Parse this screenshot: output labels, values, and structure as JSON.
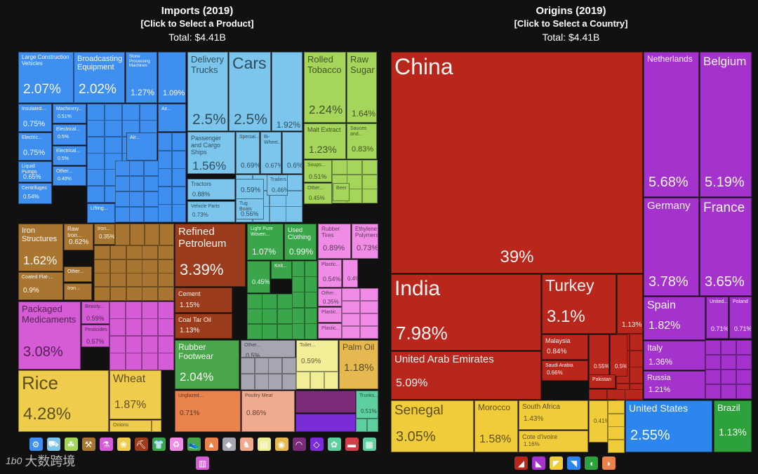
{
  "left_header": {
    "title": "Imports (2019)",
    "subtitle": "[Click to Select a Product]",
    "total": "Total: $4.41B"
  },
  "right_header": {
    "title": "Origins (2019)",
    "subtitle": "[Click to Select a Country]",
    "total": "Total: $4.41B"
  },
  "watermark": {
    "text": "大数跨境",
    "mark": "1b0"
  },
  "chart_data": [
    {
      "type": "treemap",
      "title": "Imports (2019)",
      "total": "$4.41B",
      "categories": [
        {
          "name": "Machinery",
          "color": "#3f8ff0",
          "items": [
            {
              "label": "Large Construction Vehicles",
              "value": "2.07%"
            },
            {
              "label": "Broadcasting Equipment",
              "value": "2.02%"
            },
            {
              "label": "Stone Processing Machines",
              "value": "1.27%"
            },
            {
              "label": "",
              "value": "1.09%"
            },
            {
              "label": "Insulated...",
              "value": "0.75%"
            },
            {
              "label": "Machinery...",
              "value": "0.51%"
            },
            {
              "label": "Electric...",
              "value": "0.75%"
            },
            {
              "label": "Electrical...",
              "value": "0.5%"
            },
            {
              "label": "Electrical...",
              "value": "0.5%"
            },
            {
              "label": "Liquid Pumps",
              "value": "0.65%"
            },
            {
              "label": "Other...",
              "value": "0.49%"
            },
            {
              "label": "Centrifuges",
              "value": "0.54%"
            },
            {
              "label": "Air...",
              "value": ""
            },
            {
              "label": "Air...",
              "value": ""
            },
            {
              "label": "Lifting...",
              "value": ""
            }
          ]
        },
        {
          "name": "Transportation",
          "color": "#7cc5ec",
          "items": [
            {
              "label": "Delivery Trucks",
              "value": "2.5%"
            },
            {
              "label": "Cars",
              "value": "2.5%"
            },
            {
              "label": "",
              "value": "1.92%"
            },
            {
              "label": "Passenger and Cargo Ships",
              "value": "1.56%"
            },
            {
              "label": "Special...",
              "value": "0.69%"
            },
            {
              "label": "Bi-Wheel...",
              "value": "0.67%"
            },
            {
              "label": "",
              "value": "0.6%"
            },
            {
              "label": "Tractors",
              "value": "0.88%"
            },
            {
              "label": "",
              "value": "0.59%"
            },
            {
              "label": "Trailers",
              "value": "0.46%"
            },
            {
              "label": "Vehicle Parts",
              "value": "0.73%"
            },
            {
              "label": "Tug Boats",
              "value": "0.56%"
            }
          ]
        },
        {
          "name": "Foodstuffs",
          "color": "#a6d55c",
          "items": [
            {
              "label": "Rolled Tobacco",
              "value": "2.24%"
            },
            {
              "label": "Raw Sugar",
              "value": "1.64%"
            },
            {
              "label": "Malt Extract",
              "value": "1.23%"
            },
            {
              "label": "Sauces and...",
              "value": "0.83%"
            },
            {
              "label": "Soups...",
              "value": "0.51%"
            },
            {
              "label": "Other...",
              "value": "0.45%"
            },
            {
              "label": "Beer",
              "value": ""
            }
          ]
        },
        {
          "name": "Metals",
          "color": "#a87630",
          "items": [
            {
              "label": "Iron Structures",
              "value": "1.62%"
            },
            {
              "label": "Raw Iron...",
              "value": "0.62%"
            },
            {
              "label": "Iron...",
              "value": "0.35%"
            },
            {
              "label": "Other...",
              "value": ""
            },
            {
              "label": "Coated Flat-...",
              "value": "0.9%"
            },
            {
              "label": "Iron...",
              "value": ""
            }
          ]
        },
        {
          "name": "Mineral Products",
          "color": "#9b3d1d",
          "items": [
            {
              "label": "Refined Petroleum",
              "value": "3.39%"
            },
            {
              "label": "Cement",
              "value": "1.15%"
            },
            {
              "label": "Coal Tar Oil",
              "value": "1.13%"
            }
          ]
        },
        {
          "name": "Textiles",
          "color": "#3aa54a",
          "items": [
            {
              "label": "Light Pure Woven...",
              "value": "1.07%"
            },
            {
              "label": "Used Clothing",
              "value": "0.99%"
            },
            {
              "label": "Knit...",
              "value": ""
            },
            {
              "label": "",
              "value": "0.45%"
            }
          ]
        },
        {
          "name": "Plastics and Rubbers",
          "color": "#f08ce6",
          "items": [
            {
              "label": "Rubber Tires",
              "value": "0.89%"
            },
            {
              "label": "Ethylene Polymers",
              "value": "0.73%"
            },
            {
              "label": "Plastic...",
              "value": "0.54%"
            },
            {
              "label": "",
              "value": "0.4%"
            },
            {
              "label": "Other...",
              "value": "0.35%"
            },
            {
              "label": "Plastic...",
              "value": ""
            },
            {
              "label": "Plastic...",
              "value": ""
            }
          ]
        },
        {
          "name": "Chemical Products",
          "color": "#d65bd6",
          "items": [
            {
              "label": "Packaged Medicaments",
              "value": "3.08%"
            },
            {
              "label": "Beauty...",
              "value": "0.59%"
            },
            {
              "label": "Pesticides",
              "value": "0.57%"
            }
          ]
        },
        {
          "name": "Vegetable Products",
          "color": "#f0cc4c",
          "items": [
            {
              "label": "Rice",
              "value": "4.28%"
            },
            {
              "label": "Wheat",
              "value": "1.87%"
            },
            {
              "label": "Onions",
              "value": ""
            }
          ]
        },
        {
          "name": "Footwear and Headwear",
          "color": "#4aa64a",
          "items": [
            {
              "label": "Rubber Footwear",
              "value": "2.04%"
            }
          ]
        },
        {
          "name": "Stone And Glass",
          "color": "#a6a6b2",
          "items": [
            {
              "label": "Other...",
              "value": "0.5%"
            }
          ]
        },
        {
          "name": "Paper Goods",
          "color": "#f1ee98",
          "items": [
            {
              "label": "Toilet...",
              "value": "0.59%"
            }
          ]
        },
        {
          "name": "Animal and Vegetable Bi-Products",
          "color": "#e5b950",
          "items": [
            {
              "label": "Palm Oil",
              "value": "1.18%"
            }
          ]
        },
        {
          "name": "Wood Products",
          "color": "#e9834b",
          "items": [
            {
              "label": "Unglazed...",
              "value": "0.71%"
            }
          ]
        },
        {
          "name": "Animal Products",
          "color": "#f0aa8e",
          "items": [
            {
              "label": "Poultry Meat",
              "value": "0.86%"
            }
          ]
        },
        {
          "name": "Miscellaneous",
          "color": "#7b2b77",
          "items": [
            {
              "label": "",
              "value": ""
            }
          ]
        },
        {
          "name": "Instruments",
          "color": "#7a2cd8",
          "items": [
            {
              "label": "",
              "value": ""
            }
          ]
        },
        {
          "name": "Arts and Antiques",
          "color": "#5ecf9f",
          "items": [
            {
              "label": "Trunks...",
              "value": "0.51%"
            }
          ]
        }
      ]
    },
    {
      "type": "treemap",
      "title": "Origins (2019)",
      "total": "$4.41B",
      "categories": [
        {
          "name": "Asia",
          "color": "#b8261c",
          "items": [
            {
              "label": "China",
              "value": "39%"
            },
            {
              "label": "India",
              "value": "7.98%"
            },
            {
              "label": "Turkey",
              "value": "3.1%"
            },
            {
              "label": "",
              "value": "1.13%"
            },
            {
              "label": "United Arab Emirates",
              "value": "5.09%"
            },
            {
              "label": "Malaysia",
              "value": "0.84%"
            },
            {
              "label": "Saudi Arabia",
              "value": "0.66%"
            },
            {
              "label": "",
              "value": "0.55%"
            },
            {
              "label": "",
              "value": "0.5%"
            },
            {
              "label": "Pakistan",
              "value": ""
            }
          ]
        },
        {
          "name": "Europe",
          "color": "#a432cc",
          "items": [
            {
              "label": "Netherlands",
              "value": "5.68%"
            },
            {
              "label": "Belgium",
              "value": "5.19%"
            },
            {
              "label": "Germany",
              "value": "3.78%"
            },
            {
              "label": "France",
              "value": "3.65%"
            },
            {
              "label": "Spain",
              "value": "1.82%"
            },
            {
              "label": "United...",
              "value": "0.71%"
            },
            {
              "label": "Poland",
              "value": "0.71%"
            },
            {
              "label": "Italy",
              "value": "1.36%"
            },
            {
              "label": "Russia",
              "value": "1.21%"
            }
          ]
        },
        {
          "name": "Africa",
          "color": "#f0cc3a",
          "items": [
            {
              "label": "Senegal",
              "value": "3.05%"
            },
            {
              "label": "Morocco",
              "value": "1.58%"
            },
            {
              "label": "South Africa",
              "value": "1.43%"
            },
            {
              "label": "Cote d'Ivoire",
              "value": "1.16%"
            },
            {
              "label": "",
              "value": "0.41%"
            }
          ]
        },
        {
          "name": "North America",
          "color": "#2d86ee",
          "items": [
            {
              "label": "United States",
              "value": "2.55%"
            }
          ]
        },
        {
          "name": "South America",
          "color": "#2da13c",
          "items": [
            {
              "label": "Brazil",
              "value": "1.13%"
            }
          ]
        }
      ]
    }
  ],
  "product_icons": [
    {
      "name": "machinery-icon",
      "color": "#3f8ff0"
    },
    {
      "name": "transportation-icon",
      "color": "#7cc5ec"
    },
    {
      "name": "foodstuffs-icon",
      "color": "#a6d55c"
    },
    {
      "name": "metals-icon",
      "color": "#a87630"
    },
    {
      "name": "chemicals-icon",
      "color": "#d65bd6"
    },
    {
      "name": "vegetables-icon",
      "color": "#f0cc4c"
    },
    {
      "name": "mineral-icon",
      "color": "#9b3d1d"
    },
    {
      "name": "textiles-icon",
      "color": "#3aa54a"
    },
    {
      "name": "plastics-icon",
      "color": "#f08ce6"
    },
    {
      "name": "footwear-icon",
      "color": "#4aa64a"
    },
    {
      "name": "wood-icon",
      "color": "#e9834b"
    },
    {
      "name": "stone-icon",
      "color": "#a6a6b2"
    },
    {
      "name": "animal-icon",
      "color": "#f0aa8e"
    },
    {
      "name": "paper-icon",
      "color": "#f1ee98"
    },
    {
      "name": "oils-icon",
      "color": "#e5b950"
    },
    {
      "name": "instruments-icon",
      "color": "#7b2b77"
    },
    {
      "name": "precious-metals-icon",
      "color": "#7a2cd8"
    },
    {
      "name": "arts-icon",
      "color": "#5ecf9f"
    },
    {
      "name": "weapons-icon",
      "color": "#d0404a"
    },
    {
      "name": "miscellaneous-icon",
      "color": "#5ecf9f"
    },
    {
      "name": "furniture-icon",
      "color": "#d65bd6"
    }
  ],
  "region_icons": [
    {
      "name": "asia-icon",
      "color": "#b8261c"
    },
    {
      "name": "europe-icon",
      "color": "#a432cc"
    },
    {
      "name": "africa-icon",
      "color": "#f0cc3a"
    },
    {
      "name": "north-america-icon",
      "color": "#2d86ee"
    },
    {
      "name": "south-america-icon",
      "color": "#2da13c"
    },
    {
      "name": "oceania-icon",
      "color": "#e9834b"
    }
  ]
}
